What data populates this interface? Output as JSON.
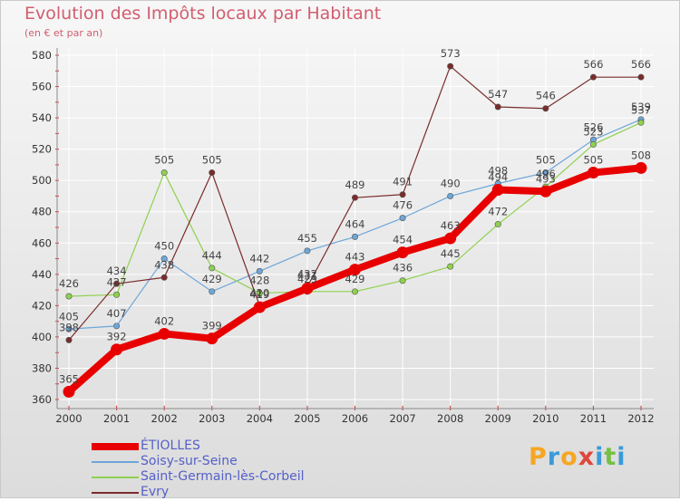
{
  "title": "Evolution des Impôts locaux par Habitant",
  "subtitle": "(en € et par an)",
  "brand": {
    "letters": [
      "P",
      "r",
      "o",
      "x",
      "i",
      "t",
      "i"
    ],
    "colors": [
      "#f5a623",
      "#3a9ad9",
      "#f5a623",
      "#e0463a",
      "#3a9ad9",
      "#74c043",
      "#3a9ad9"
    ]
  },
  "chart_data": {
    "type": "line",
    "title": "Evolution des Impôts locaux par Habitant",
    "subtitle": "(en € et par an)",
    "xlabel": "",
    "ylabel": "",
    "ylim": [
      360,
      580
    ],
    "yticks": [
      360,
      380,
      400,
      420,
      440,
      460,
      480,
      500,
      520,
      540,
      560,
      580
    ],
    "grid": true,
    "legend_position": "bottom-left",
    "categories": [
      "2000",
      "2001",
      "2002",
      "2003",
      "2004",
      "2005",
      "2006",
      "2007",
      "2008",
      "2009",
      "2010",
      "2011",
      "2012"
    ],
    "series": [
      {
        "name": "ÉTIOLLES",
        "color": "#e80000",
        "values": [
          365,
          392,
          402,
          399,
          419,
          431,
          443,
          454,
          463,
          494,
          493,
          505,
          508
        ]
      },
      {
        "name": "Soisy-sur-Seine",
        "color": "#6da6d9",
        "values": [
          405,
          407,
          450,
          429,
          442,
          455,
          464,
          476,
          490,
          498,
          505,
          526,
          539
        ]
      },
      {
        "name": "Saint-Germain-lès-Corbeil",
        "color": "#8fd14f",
        "values": [
          426,
          427,
          505,
          444,
          428,
          429,
          429,
          436,
          445,
          472,
          496,
          523,
          537
        ]
      },
      {
        "name": "Evry",
        "color": "#7a2b2b",
        "values": [
          398,
          434,
          438,
          505,
          420,
          432,
          489,
          491,
          573,
          547,
          546,
          566,
          566
        ]
      }
    ]
  }
}
